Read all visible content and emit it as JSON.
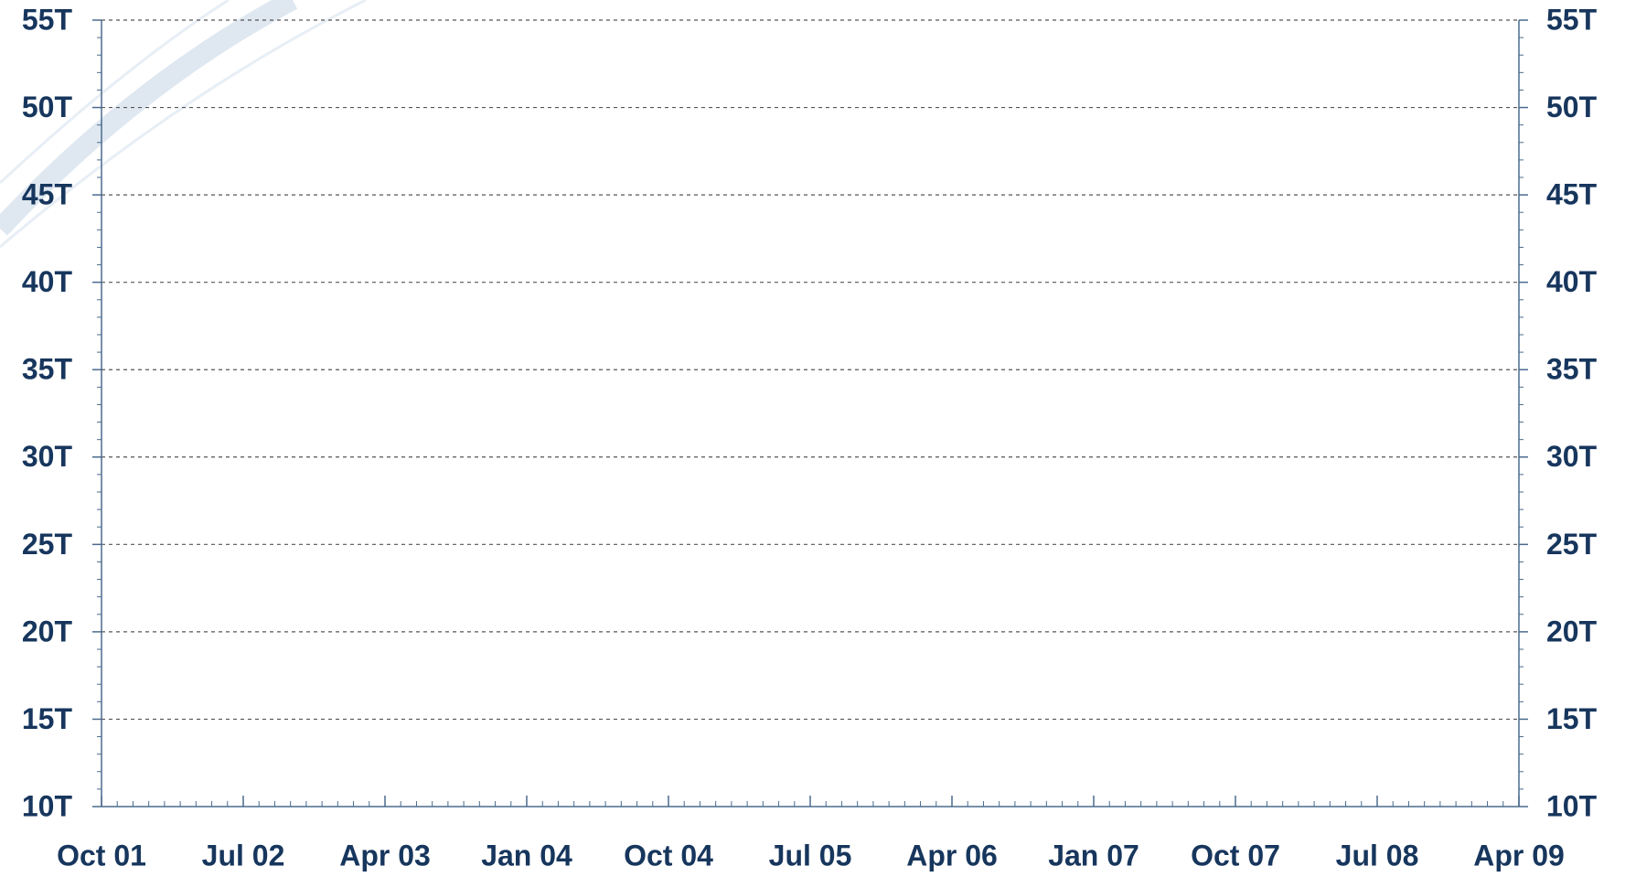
{
  "chart_data": {
    "type": "line",
    "series": [],
    "xlim": [
      "2001-10",
      "2009-04"
    ],
    "xticks": [
      {
        "value": "2001-10",
        "label": "Oct 01"
      },
      {
        "value": "2002-07",
        "label": "Jul 02"
      },
      {
        "value": "2003-04",
        "label": "Apr 03"
      },
      {
        "value": "2004-01",
        "label": "Jan 04"
      },
      {
        "value": "2004-10",
        "label": "Oct 04"
      },
      {
        "value": "2005-07",
        "label": "Jul 05"
      },
      {
        "value": "2006-04",
        "label": "Apr 06"
      },
      {
        "value": "2007-01",
        "label": "Jan 07"
      },
      {
        "value": "2007-10",
        "label": "Oct 07"
      },
      {
        "value": "2008-07",
        "label": "Jul 08"
      },
      {
        "value": "2009-04",
        "label": "Apr 09"
      }
    ],
    "ylim": [
      10,
      55
    ],
    "yticks": [
      {
        "value": 10,
        "label": "10T"
      },
      {
        "value": 15,
        "label": "15T"
      },
      {
        "value": 20,
        "label": "20T"
      },
      {
        "value": 25,
        "label": "25T"
      },
      {
        "value": 30,
        "label": "30T"
      },
      {
        "value": 35,
        "label": "35T"
      },
      {
        "value": 40,
        "label": "40T"
      },
      {
        "value": 45,
        "label": "45T"
      },
      {
        "value": 50,
        "label": "50T"
      },
      {
        "value": 55,
        "label": "55T"
      }
    ],
    "y2lim": [
      10,
      55
    ],
    "y2ticks": [
      {
        "value": 10,
        "label": "10T"
      },
      {
        "value": 15,
        "label": "15T"
      },
      {
        "value": 20,
        "label": "20T"
      },
      {
        "value": 25,
        "label": "25T"
      },
      {
        "value": 30,
        "label": "30T"
      },
      {
        "value": 35,
        "label": "35T"
      },
      {
        "value": 40,
        "label": "40T"
      },
      {
        "value": 45,
        "label": "45T"
      },
      {
        "value": 50,
        "label": "50T"
      },
      {
        "value": 55,
        "label": "55T"
      }
    ],
    "grid": true
  }
}
